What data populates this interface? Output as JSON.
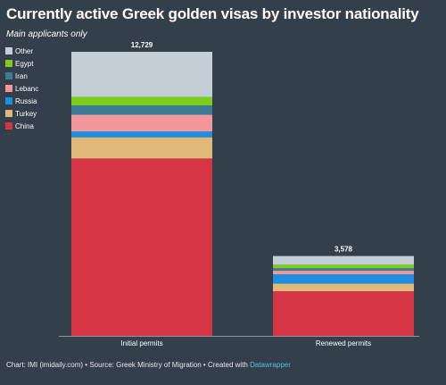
{
  "title": "Currently active Greek golden visas by investor nationality",
  "subtitle": "Main applicants only",
  "footer": {
    "text": "Chart: IMI (imidaily.com) • Source: Greek Ministry of Migration • Created with ",
    "link": "Datawrapper"
  },
  "chart_data": {
    "type": "bar",
    "stacked": true,
    "title": "Currently active Greek golden visas by investor nationality",
    "subtitle": "Main applicants only",
    "categories": [
      "Initial permits",
      "Renewed permits"
    ],
    "totals": [
      12729,
      3578
    ],
    "total_labels": [
      "12,729",
      "3,578"
    ],
    "series": [
      {
        "name": "China",
        "color": "#d63545",
        "values": [
          7950,
          2000
        ]
      },
      {
        "name": "Turkey",
        "color": "#e0b878",
        "values": [
          950,
          340
        ]
      },
      {
        "name": "Russia",
        "color": "#1e8fe0",
        "values": [
          260,
          420
        ]
      },
      {
        "name": "Lebanon",
        "color": "#f2989c",
        "values": [
          750,
          160
        ]
      },
      {
        "name": "Iran",
        "color": "#3d7a94",
        "values": [
          420,
          110
        ]
      },
      {
        "name": "Egypt",
        "color": "#7fce1e",
        "values": [
          380,
          160
        ]
      },
      {
        "name": "Other",
        "color": "#c3ced6",
        "values": [
          2019,
          388
        ]
      }
    ],
    "legend": {
      "placement": "top-left",
      "order": [
        "Other",
        "Egypt",
        "Iran",
        "Lebanon",
        "Russia",
        "Turkey",
        "China"
      ],
      "labels": [
        "Other",
        "Egypt",
        "Iran",
        "Lebanc",
        "Russia",
        "Turkey",
        "China"
      ]
    },
    "ylim": [
      0,
      12729
    ],
    "grid": false
  }
}
